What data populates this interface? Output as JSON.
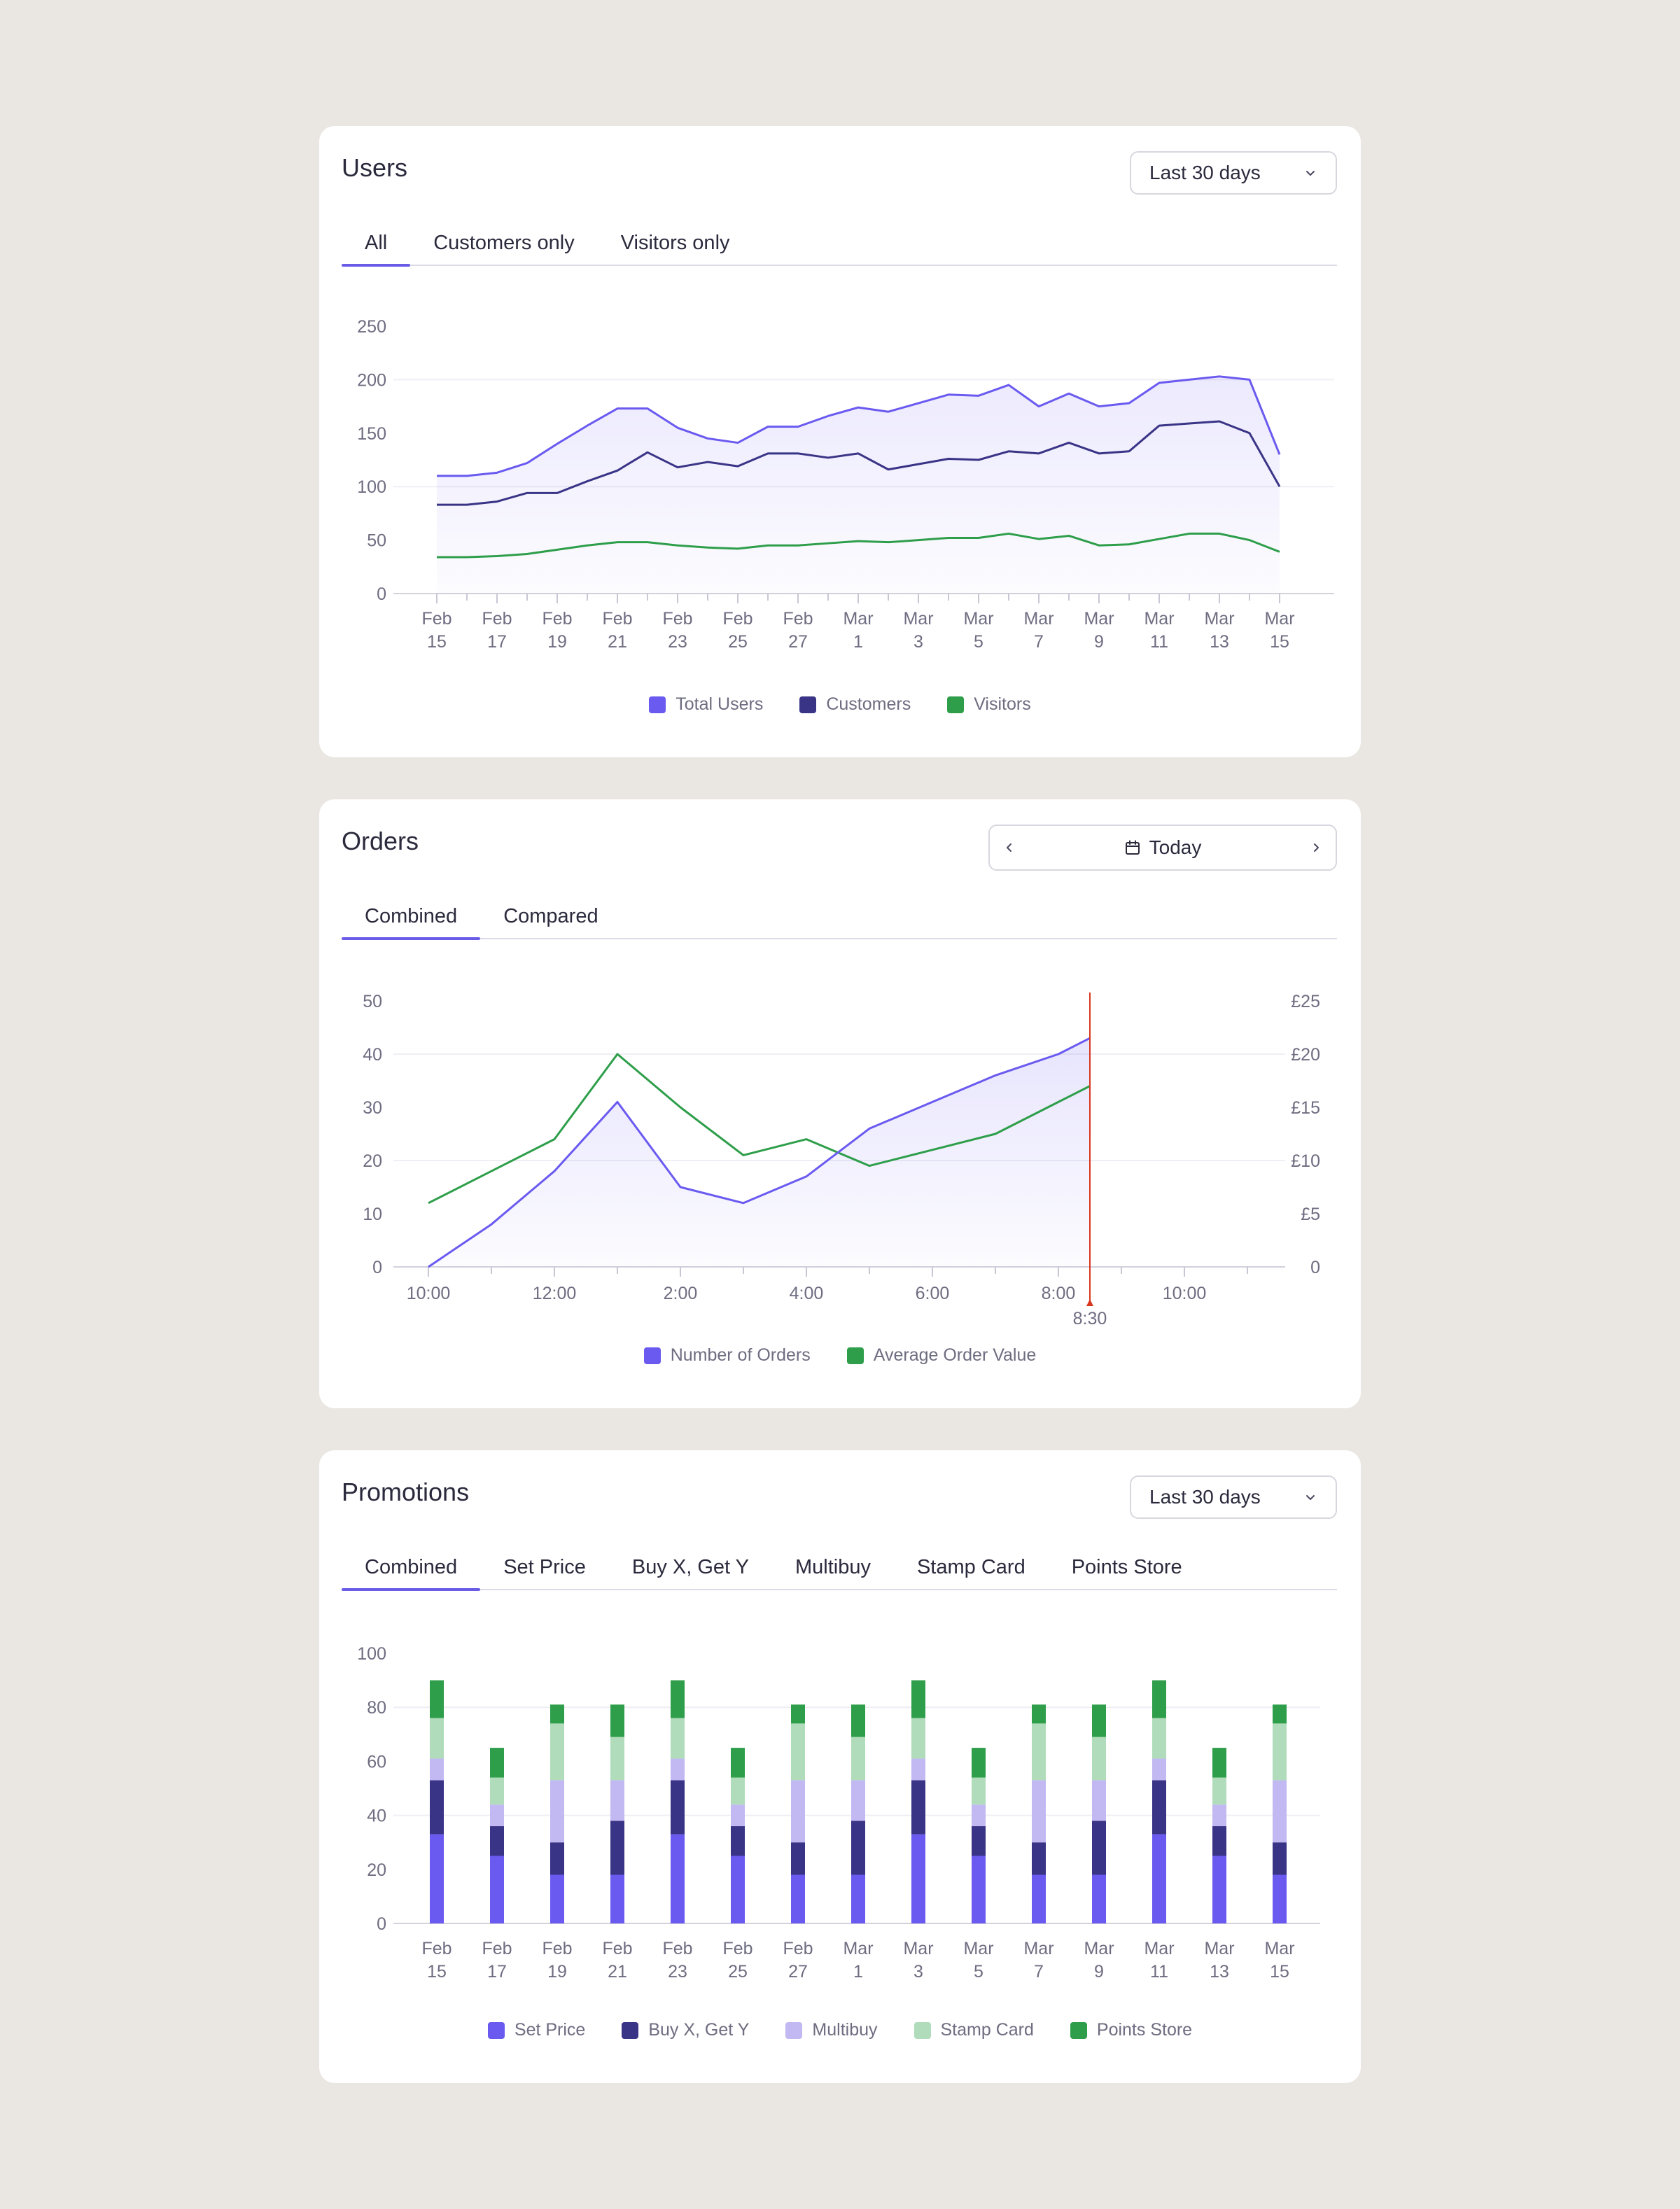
{
  "colors": {
    "total": "#6A5AF0",
    "customers": "#3A3487",
    "visitors": "#2E9E4A",
    "set_price": "#6A5AF0",
    "buyx": "#3A3487",
    "multibuy": "#C2B8F2",
    "stamp": "#B0DCBB",
    "points": "#2E9E4A",
    "marker": "#D9361E"
  },
  "users": {
    "title": "Users",
    "range_label": "Last 30 days",
    "tabs": [
      "All",
      "Customers only",
      "Visitors only"
    ],
    "active_tab": 0,
    "chart_data": {
      "type": "line",
      "x_labels": [
        [
          "Feb",
          "15"
        ],
        [
          "Feb",
          "17"
        ],
        [
          "Feb",
          "19"
        ],
        [
          "Feb",
          "21"
        ],
        [
          "Feb",
          "23"
        ],
        [
          "Feb",
          "25"
        ],
        [
          "Feb",
          "27"
        ],
        [
          "Mar",
          "1"
        ],
        [
          "Mar",
          "3"
        ],
        [
          "Mar",
          "5"
        ],
        [
          "Mar",
          "7"
        ],
        [
          "Mar",
          "9"
        ],
        [
          "Mar",
          "11"
        ],
        [
          "Mar",
          "13"
        ],
        [
          "Mar",
          "15"
        ]
      ],
      "y_ticks": [
        0,
        50,
        100,
        150,
        200,
        250
      ],
      "ylim": [
        0,
        250
      ],
      "series": [
        {
          "name": "Total Users",
          "color_key": "total",
          "values": [
            110,
            110,
            113,
            122,
            140,
            157,
            173,
            173,
            155,
            145,
            141,
            156,
            156,
            166,
            174,
            170,
            178,
            186,
            185,
            195,
            175,
            187,
            175,
            178,
            197,
            200,
            203,
            200,
            130
          ]
        },
        {
          "name": "Customers",
          "color_key": "customers",
          "values": [
            83,
            83,
            86,
            94,
            94,
            105,
            115,
            132,
            118,
            123,
            119,
            131,
            131,
            127,
            131,
            116,
            121,
            126,
            125,
            133,
            131,
            141,
            131,
            133,
            157,
            159,
            161,
            150,
            100
          ]
        },
        {
          "name": "Visitors",
          "color_key": "visitors",
          "values": [
            34,
            34,
            35,
            37,
            41,
            45,
            48,
            48,
            45,
            43,
            42,
            45,
            45,
            47,
            49,
            48,
            50,
            52,
            52,
            56,
            51,
            54,
            45,
            46,
            51,
            56,
            56,
            50,
            39
          ]
        }
      ]
    }
  },
  "orders": {
    "title": "Orders",
    "date_label": "Today",
    "tabs": [
      "Combined",
      "Compared"
    ],
    "active_tab": 0,
    "chart_data": {
      "type": "line",
      "x_labels": [
        "10:00",
        "12:00",
        "2:00",
        "4:00",
        "6:00",
        "8:00",
        "10:00"
      ],
      "y_left_ticks": [
        0,
        10,
        20,
        30,
        40,
        50
      ],
      "y_right_ticks": [
        "0",
        "£5",
        "£10",
        "£15",
        "£20",
        "£25"
      ],
      "ylim": [
        0,
        50
      ],
      "ylim_right": [
        0,
        25
      ],
      "x_hours": [
        10,
        11,
        12,
        13,
        14,
        15,
        16,
        17,
        18,
        19,
        20,
        20.5
      ],
      "series": [
        {
          "name": "Number of Orders",
          "color_key": "total",
          "axis": "left",
          "values": [
            0,
            8,
            18,
            31,
            15,
            12,
            17,
            26,
            31,
            36,
            40,
            43
          ]
        },
        {
          "name": "Average Order Value",
          "color_key": "visitors",
          "axis": "right",
          "values": [
            6,
            9,
            12,
            20,
            15,
            10.5,
            12,
            9.5,
            11,
            12.5,
            15.5,
            17
          ]
        }
      ],
      "marker_label": "8:30"
    }
  },
  "promotions": {
    "title": "Promotions",
    "range_label": "Last 30 days",
    "tabs": [
      "Combined",
      "Set Price",
      "Buy X, Get Y",
      "Multibuy",
      "Stamp Card",
      "Points Store"
    ],
    "active_tab": 0,
    "chart_data": {
      "type": "bar",
      "stacked": true,
      "categories": [
        [
          "Feb",
          "15"
        ],
        [
          "Feb",
          "17"
        ],
        [
          "Feb",
          "19"
        ],
        [
          "Feb",
          "21"
        ],
        [
          "Feb",
          "23"
        ],
        [
          "Feb",
          "25"
        ],
        [
          "Feb",
          "27"
        ],
        [
          "Mar",
          "1"
        ],
        [
          "Mar",
          "3"
        ],
        [
          "Mar",
          "5"
        ],
        [
          "Mar",
          "7"
        ],
        [
          "Mar",
          "9"
        ],
        [
          "Mar",
          "11"
        ],
        [
          "Mar",
          "13"
        ],
        [
          "Mar",
          "15"
        ]
      ],
      "y_ticks": [
        0,
        20,
        40,
        60,
        80,
        100
      ],
      "ylim": [
        0,
        100
      ],
      "series": [
        {
          "name": "Set Price",
          "color_key": "set_price",
          "values": [
            33,
            25,
            18,
            18,
            33,
            25,
            18,
            18,
            33,
            25,
            18,
            18,
            33,
            25,
            18
          ]
        },
        {
          "name": "Buy X, Get Y",
          "color_key": "buyx",
          "values": [
            20,
            11,
            12,
            20,
            20,
            11,
            12,
            20,
            20,
            11,
            12,
            20,
            20,
            11,
            12
          ]
        },
        {
          "name": "Multibuy",
          "color_key": "multibuy",
          "values": [
            8,
            8,
            23,
            15,
            8,
            8,
            23,
            15,
            8,
            8,
            23,
            15,
            8,
            8,
            23
          ]
        },
        {
          "name": "Stamp Card",
          "color_key": "stamp",
          "values": [
            15,
            10,
            21,
            16,
            15,
            10,
            21,
            16,
            15,
            10,
            21,
            16,
            15,
            10,
            21
          ]
        },
        {
          "name": "Points Store",
          "color_key": "points",
          "values": [
            14,
            11,
            7,
            12,
            14,
            11,
            7,
            12,
            14,
            11,
            7,
            12,
            14,
            11,
            7
          ]
        }
      ]
    }
  }
}
